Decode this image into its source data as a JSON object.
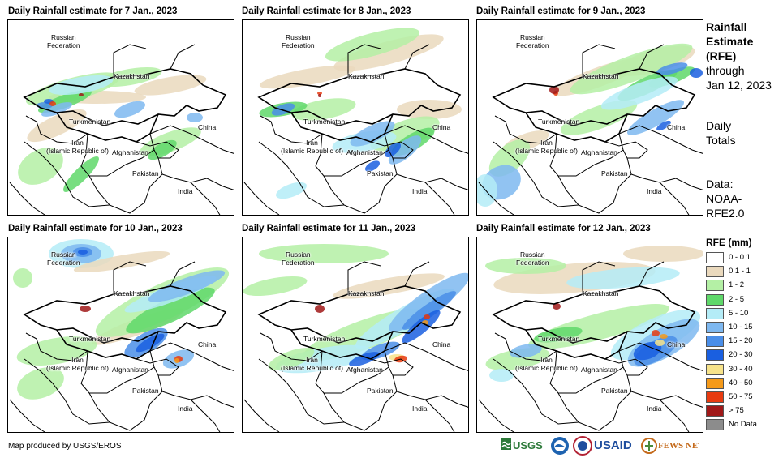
{
  "panels": [
    {
      "title": "Daily Rainfall estimate for 7 Jan., 2023"
    },
    {
      "title": "Daily Rainfall estimate for 8 Jan., 2023"
    },
    {
      "title": "Daily Rainfall estimate for 9 Jan., 2023"
    },
    {
      "title": "Daily Rainfall estimate for 10 Jan., 2023"
    },
    {
      "title": "Daily Rainfall estimate for 11 Jan., 2023"
    },
    {
      "title": "Daily Rainfall estimate for 12 Jan., 2023"
    }
  ],
  "map_labels": {
    "russia": "Russian\nFederation",
    "kazakhstan": "Kazakhstan",
    "turkmenistan": "Turkmenistan",
    "iran": "Iran\n(Islamic Republic of)",
    "afghanistan": "Afghanistan",
    "pakistan": "Pakistan",
    "china": "China",
    "india": "India"
  },
  "side_info": {
    "title1": "Rainfall",
    "title2": "Estimate",
    "title3": "(RFE)",
    "through": "through",
    "date": "Jan 12, 2023",
    "daily": "Daily",
    "totals": "Totals",
    "data_label": "Data:",
    "source1": "NOAA-",
    "source2": "RFE2.0"
  },
  "legend": {
    "title": "RFE (mm)",
    "entries": [
      {
        "label": "0 - 0.1",
        "color": "#ffffff"
      },
      {
        "label": "0.1 - 1",
        "color": "#ead9bd"
      },
      {
        "label": "1 - 2",
        "color": "#b4f0a5"
      },
      {
        "label": "2 - 5",
        "color": "#5fd86a"
      },
      {
        "label": "5 - 10",
        "color": "#b4ecf7"
      },
      {
        "label": "10 - 15",
        "color": "#7eb8f0"
      },
      {
        "label": "15 - 20",
        "color": "#4a8ee8"
      },
      {
        "label": "20 - 30",
        "color": "#1a5fe0"
      },
      {
        "label": "30 - 40",
        "color": "#f7e38a"
      },
      {
        "label": "40 - 50",
        "color": "#f59a1a"
      },
      {
        "label": "50 - 75",
        "color": "#e83b10"
      },
      {
        "label": "> 75",
        "color": "#a01818"
      },
      {
        "label": "No Data",
        "color": "#8c8c8c"
      }
    ]
  },
  "footer": {
    "credit": "Map produced by USGS/EROS"
  },
  "logos": {
    "usgs": "USGS",
    "usaid": "USAID",
    "fewsnet": "FEWS NET"
  }
}
